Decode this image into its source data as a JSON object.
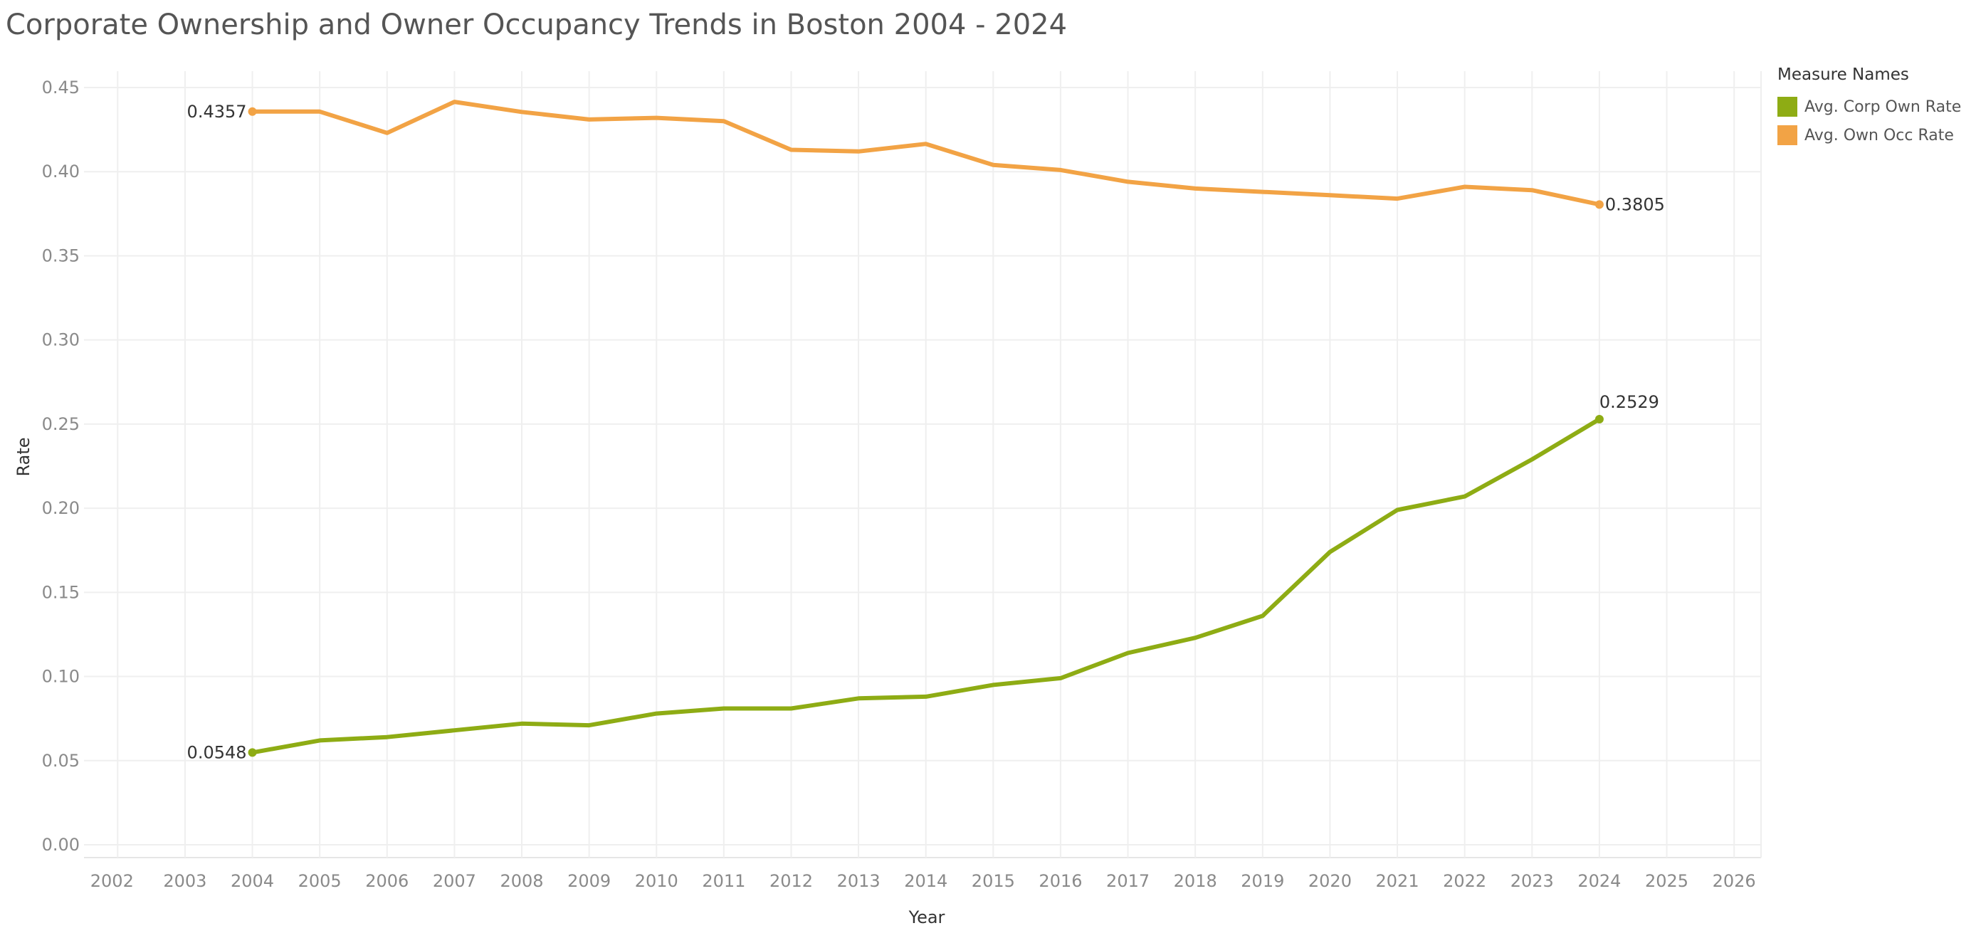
{
  "chart_data": {
    "type": "line",
    "title": "Corporate Ownership and Owner Occupancy Trends in Boston 2004 - 2024",
    "xlabel": "Year",
    "ylabel": "Rate",
    "x_ticks": [
      "2002",
      "2003",
      "2004",
      "2005",
      "2006",
      "2007",
      "2008",
      "2009",
      "2010",
      "2011",
      "2012",
      "2013",
      "2014",
      "2015",
      "2016",
      "2017",
      "2018",
      "2019",
      "2020",
      "2021",
      "2022",
      "2023",
      "2024",
      "2025",
      "2026"
    ],
    "y_ticks": [
      "0.00",
      "0.05",
      "0.10",
      "0.15",
      "0.20",
      "0.25",
      "0.30",
      "0.35",
      "0.40",
      "0.45"
    ],
    "xlim": [
      2001.5,
      2026.4
    ],
    "ylim": [
      0,
      0.45
    ],
    "grid": true,
    "legend_position": "top-right",
    "legend_title": "Measure Names",
    "x": [
      2004,
      2005,
      2006,
      2007,
      2008,
      2009,
      2010,
      2011,
      2012,
      2013,
      2014,
      2015,
      2016,
      2017,
      2018,
      2019,
      2020,
      2021,
      2022,
      2023,
      2024
    ],
    "series": [
      {
        "name": "Avg. Corp Own Rate",
        "color": "#8eac14",
        "values": [
          0.0548,
          0.062,
          0.064,
          0.068,
          0.072,
          0.071,
          0.078,
          0.081,
          0.081,
          0.087,
          0.088,
          0.095,
          0.099,
          0.114,
          0.123,
          0.136,
          0.174,
          0.199,
          0.207,
          0.229,
          0.2529
        ],
        "labels": [
          {
            "x": 2004,
            "text": "0.0548",
            "side": "left"
          },
          {
            "x": 2024,
            "text": "0.2529",
            "side": "above"
          }
        ]
      },
      {
        "name": "Avg. Own Occ Rate",
        "color": "#f2a345",
        "values": [
          0.4357,
          0.4357,
          0.423,
          0.4415,
          0.4355,
          0.431,
          0.432,
          0.43,
          0.413,
          0.412,
          0.4165,
          0.404,
          0.401,
          0.394,
          0.39,
          0.388,
          0.386,
          0.384,
          0.391,
          0.389,
          0.3805
        ],
        "labels": [
          {
            "x": 2004,
            "text": "0.4357",
            "side": "left"
          },
          {
            "x": 2024,
            "text": "0.3805",
            "side": "right"
          }
        ]
      }
    ]
  }
}
